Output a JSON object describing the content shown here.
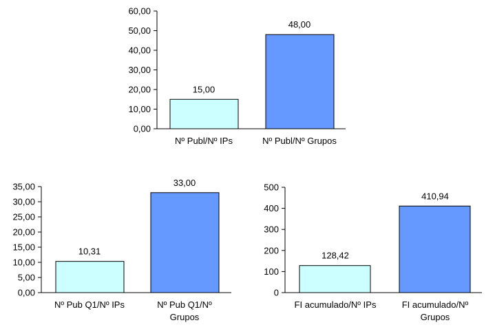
{
  "palette": {
    "light": "#ccffff",
    "dark": "#6699ff",
    "stroke": "#000000"
  },
  "chart_data": [
    {
      "type": "bar",
      "categories": [
        "Nº Publ/Nº IPs",
        "Nº Publ/Nº Grupos"
      ],
      "values": [
        15.0,
        48.0
      ],
      "value_labels": [
        "15,00",
        "48,00"
      ],
      "bar_colors": [
        "light",
        "dark"
      ],
      "ylim": [
        0,
        60
      ],
      "yticks": [
        "0,00",
        "10,00",
        "20,00",
        "30,00",
        "40,00",
        "50,00",
        "60,00"
      ],
      "grid": false,
      "legend": "none"
    },
    {
      "type": "bar",
      "categories": [
        "Nº Pub Q1/Nº IPs",
        "Nº Pub Q1/Nº Grupos"
      ],
      "category_lines": [
        [
          "Nº Pub Q1/Nº IPs"
        ],
        [
          "Nº Pub Q1/Nº",
          "Grupos"
        ]
      ],
      "values": [
        10.31,
        33.0
      ],
      "value_labels": [
        "10,31",
        "33,00"
      ],
      "bar_colors": [
        "light",
        "dark"
      ],
      "ylim": [
        0,
        35
      ],
      "yticks": [
        "0,00",
        "5,00",
        "10,00",
        "15,00",
        "20,00",
        "25,00",
        "30,00",
        "35,00"
      ],
      "grid": false,
      "legend": "none"
    },
    {
      "type": "bar",
      "categories": [
        "FI acumulado/Nº IPs",
        "FI acumulado/Nº Grupos"
      ],
      "category_lines": [
        [
          "FI acumulado/Nº IPs"
        ],
        [
          "FI acumulado/Nº",
          "Grupos"
        ]
      ],
      "values": [
        128.42,
        410.94
      ],
      "value_labels": [
        "128,42",
        "410,94"
      ],
      "bar_colors": [
        "light",
        "dark"
      ],
      "ylim": [
        0,
        500
      ],
      "yticks": [
        "0",
        "100",
        "200",
        "300",
        "400",
        "500"
      ],
      "grid": false,
      "legend": "none"
    }
  ]
}
